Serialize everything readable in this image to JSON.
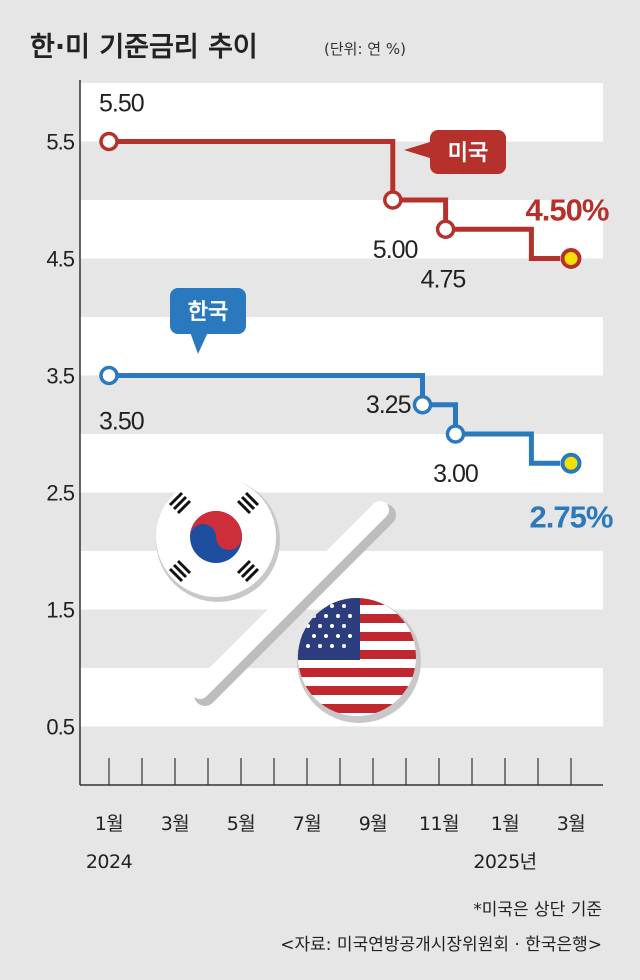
{
  "title": "한·미 기준금리 추이",
  "unit": "(단위: 연 %)",
  "footnote": "*미국은 상단 기준",
  "source": "<자료: 미국연방공개시장위원회 · 한국은행>",
  "colors": {
    "us": "#b7312c",
    "kr": "#2a79be",
    "current": "#f2e000"
  },
  "chart_data": {
    "type": "line",
    "step": true,
    "ylim": [
      0,
      6
    ],
    "yticks": [
      "0.5",
      "1.5",
      "2.5",
      "3.5",
      "4.5",
      "5.5"
    ],
    "ytick_values": [
      0.5,
      1.5,
      2.5,
      3.5,
      4.5,
      5.5
    ],
    "x_tick_labels": [
      "1월",
      "3월",
      "5월",
      "7월",
      "9월",
      "11월",
      "1월",
      "3월"
    ],
    "x_year_labels": [
      {
        "label": "2024",
        "month_index": 0
      },
      {
        "label": "2025년",
        "month_index": 12
      }
    ],
    "grid": true,
    "series": [
      {
        "name": "미국",
        "points": [
          {
            "month": 0,
            "value": 5.5,
            "label": "5.50"
          },
          {
            "month": 8.6,
            "value": 5.0,
            "label": "5.00"
          },
          {
            "month": 10.2,
            "value": 4.75,
            "label": "4.75"
          },
          {
            "month": 14.0,
            "value": 4.5,
            "label": "4.50%",
            "current": true
          }
        ]
      },
      {
        "name": "한국",
        "points": [
          {
            "month": 0,
            "value": 3.5,
            "label": "3.50"
          },
          {
            "month": 9.5,
            "value": 3.25,
            "label": "3.25"
          },
          {
            "month": 10.5,
            "value": 3.0,
            "label": "3.00"
          },
          {
            "month": 14.0,
            "value": 2.75,
            "label": "2.75%",
            "current": true
          }
        ]
      }
    ]
  }
}
